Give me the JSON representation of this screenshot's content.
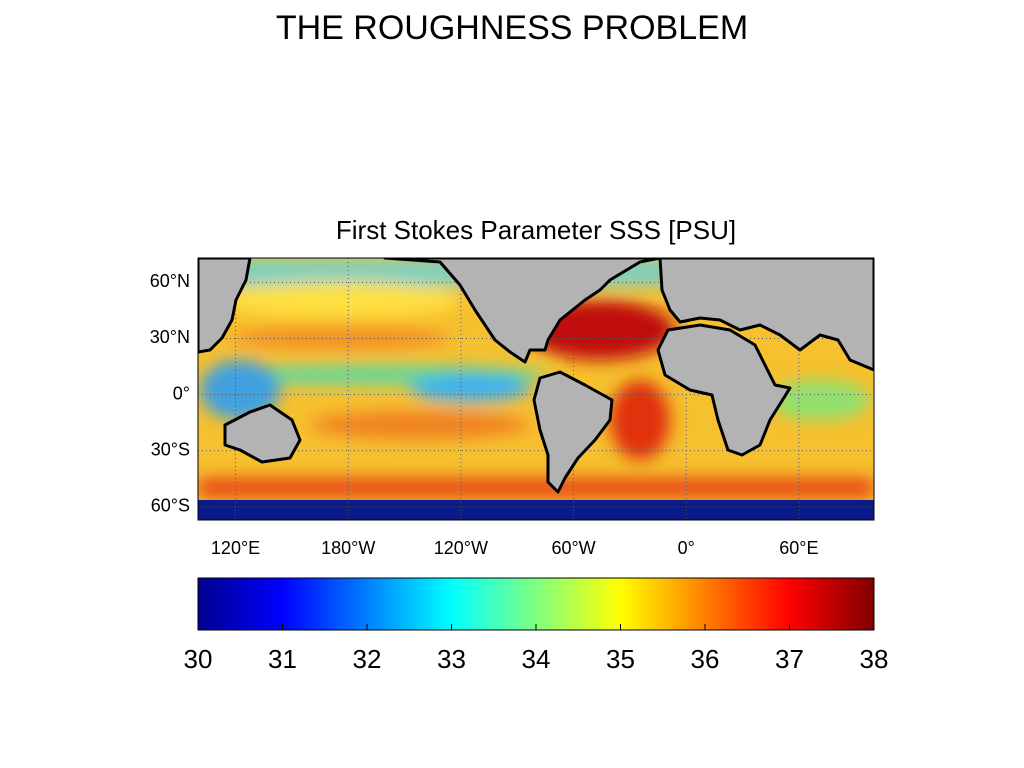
{
  "title": "THE ROUGHNESS PROBLEM",
  "chart_data": {
    "type": "map",
    "title": "First Stokes Parameter SSS [PSU]",
    "xlim": [
      100,
      460
    ],
    "xticks": [
      {
        "value": 120,
        "label": "120°E"
      },
      {
        "value": 180,
        "label": "180°W"
      },
      {
        "value": 240,
        "label": "120°W"
      },
      {
        "value": 300,
        "label": "60°W"
      },
      {
        "value": 360,
        "label": "0°"
      },
      {
        "value": 420,
        "label": "60°E"
      }
    ],
    "ylim": [
      -67,
      73
    ],
    "yticks": [
      {
        "value": 60,
        "label": "60°N"
      },
      {
        "value": 30,
        "label": "30°N"
      },
      {
        "value": 0,
        "label": "0°"
      },
      {
        "value": -30,
        "label": "30°S"
      },
      {
        "value": -60,
        "label": "60°S"
      }
    ],
    "grid": true,
    "colorbar": {
      "colormap": "jet",
      "lim": [
        30,
        38
      ],
      "ticks": [
        30,
        31,
        32,
        33,
        34,
        35,
        36,
        37,
        38
      ]
    }
  }
}
